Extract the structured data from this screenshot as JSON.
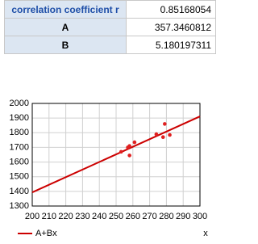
{
  "table": {
    "rows": [
      [
        "correlation coefficient r",
        "0.85168054"
      ],
      [
        "A",
        "357.3460812"
      ],
      [
        "B",
        "5.180197311"
      ]
    ]
  },
  "chart_data": {
    "type": "scatter",
    "x": [
      253,
      257,
      258,
      258,
      261,
      274,
      278,
      279,
      282
    ],
    "values": [
      1670,
      1700,
      1710,
      1645,
      1735,
      1790,
      1770,
      1860,
      1785
    ],
    "color": "#e02020",
    "lines": [
      {
        "name": "A+Bx",
        "color": "#cc0000",
        "x": [
          200,
          300
        ],
        "values": [
          1393.4,
          1911.4
        ]
      }
    ],
    "x_label": "x",
    "xlim": [
      200,
      300
    ],
    "xticks": [
      200,
      210,
      220,
      230,
      240,
      250,
      260,
      270,
      280,
      290,
      300
    ],
    "ylim": [
      1300,
      2000
    ],
    "yticks": [
      1300,
      1400,
      1500,
      1600,
      1700,
      1800,
      1900,
      2000
    ],
    "grid": true
  }
}
